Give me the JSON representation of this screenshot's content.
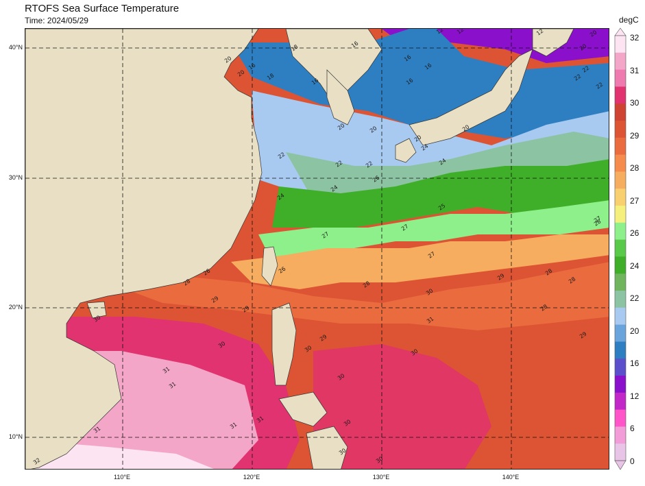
{
  "title": "RTOFS Sea Surface Temperature",
  "subtitle": "Time: 2024/05/29",
  "colorbar": {
    "unit": "degC",
    "ticks": [
      "32",
      "31",
      "30",
      "29",
      "28",
      "27",
      "26",
      "24",
      "22",
      "20",
      "16",
      "12",
      "6",
      "0"
    ],
    "colors": [
      "#fce4f2",
      "#f4a6c8",
      "#ee7ab0",
      "#e0336f",
      "#cf4332",
      "#dc5433",
      "#ea6b3e",
      "#f58b4c",
      "#f6ad5f",
      "#f8d070",
      "#f5f07d",
      "#8ef08a",
      "#58c948",
      "#3fae28",
      "#70b45e",
      "#8cc3a3",
      "#a8c9f0",
      "#6aa4dc",
      "#2e7fc2",
      "#5b4fcc",
      "#8a10cc",
      "#c227c8",
      "#ff55c8",
      "#f29cd8",
      "#e8c4e6"
    ]
  },
  "map": {
    "land_color": "#e8dfc4",
    "lat_labels": [
      "40°N",
      "30°N",
      "20°N",
      "10°N"
    ],
    "lon_labels": [
      "110°E",
      "120°E",
      "130°E",
      "140°E"
    ]
  },
  "contour_labels": [
    "12",
    "12",
    "12",
    "16",
    "16",
    "16",
    "16",
    "16",
    "16",
    "18",
    "18",
    "20",
    "20",
    "20",
    "20",
    "20",
    "20",
    "20",
    "20",
    "22",
    "22",
    "22",
    "22",
    "22",
    "22",
    "24",
    "24",
    "24",
    "24",
    "25",
    "26",
    "26",
    "26",
    "27",
    "27",
    "27",
    "27",
    "28",
    "28",
    "28",
    "28",
    "28",
    "28",
    "29",
    "29",
    "29",
    "29",
    "29",
    "30",
    "30",
    "30",
    "30",
    "30",
    "30",
    "30",
    "30",
    "30",
    "31",
    "31",
    "31",
    "31",
    "31",
    "31",
    "32"
  ]
}
